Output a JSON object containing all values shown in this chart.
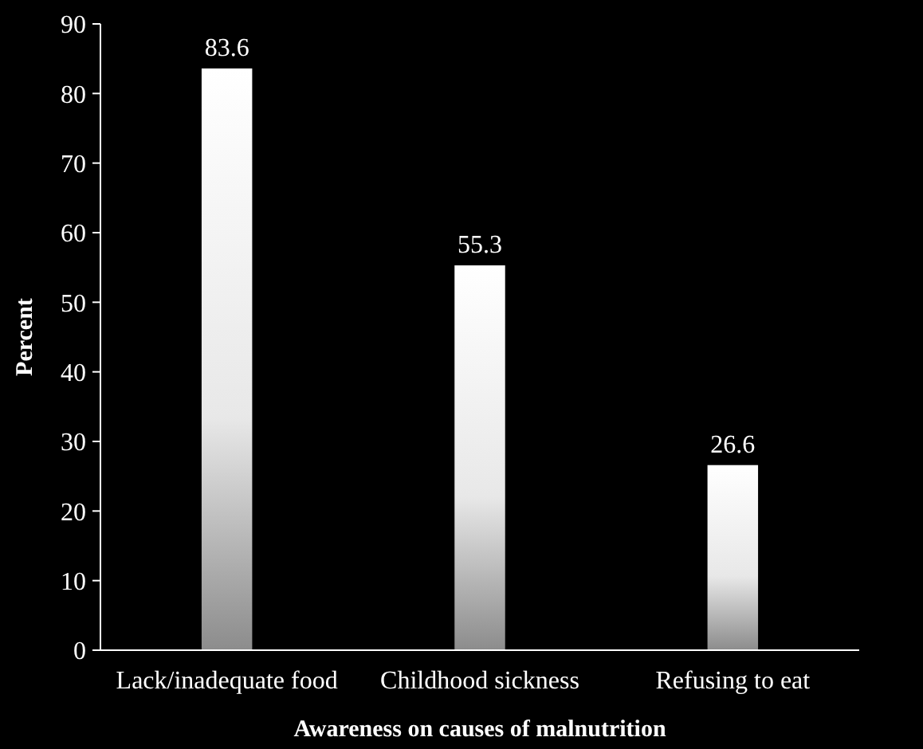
{
  "chart_data": {
    "type": "bar",
    "xlabel": "Awareness on causes of malnutrition",
    "ylabel": "Percent",
    "categories": [
      "Lack/inadequate food",
      "Childhood sickness",
      "Refusing to eat"
    ],
    "values": [
      83.6,
      55.3,
      26.6
    ],
    "color": "#e8e8e8",
    "ylim": [
      0,
      90
    ],
    "yticks": [
      0,
      10,
      20,
      30,
      40,
      50,
      60,
      70,
      80,
      90
    ],
    "data_labels": true
  }
}
